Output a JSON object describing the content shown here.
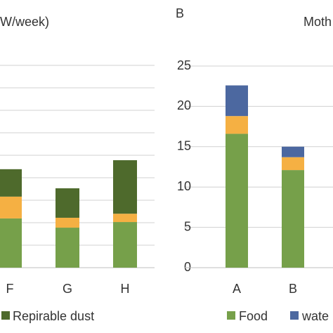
{
  "chart_data": [
    {
      "type": "stacked_bar",
      "title": "W/week)",
      "categories": [
        "F",
        "G",
        "H"
      ],
      "series": [
        {
          "color": "#76a04a",
          "values": [
            2.19,
            1.78,
            2.03
          ]
        },
        {
          "color": "#f5b043",
          "values": [
            0.97,
            0.44,
            0.37
          ]
        },
        {
          "name": "Repirable dust",
          "color": "#4e6a2c",
          "values": [
            1.22,
            1.31,
            2.38
          ]
        }
      ],
      "ylim": [
        0,
        9
      ],
      "grid": true
    },
    {
      "type": "stacked_bar",
      "panel_label": "B",
      "title": "Moth",
      "categories": [
        "A",
        "B"
      ],
      "series": [
        {
          "name": "Food",
          "color": "#76a04a",
          "values": [
            16.6,
            12.1
          ]
        },
        {
          "color": "#f5b043",
          "values": [
            2.2,
            1.6
          ]
        },
        {
          "name": "wate",
          "color": "#4c68a0",
          "values": [
            3.8,
            1.3
          ]
        }
      ],
      "ylim": [
        0,
        25
      ],
      "yticks": [
        0,
        5,
        10,
        15,
        20,
        25
      ],
      "grid": true
    }
  ]
}
